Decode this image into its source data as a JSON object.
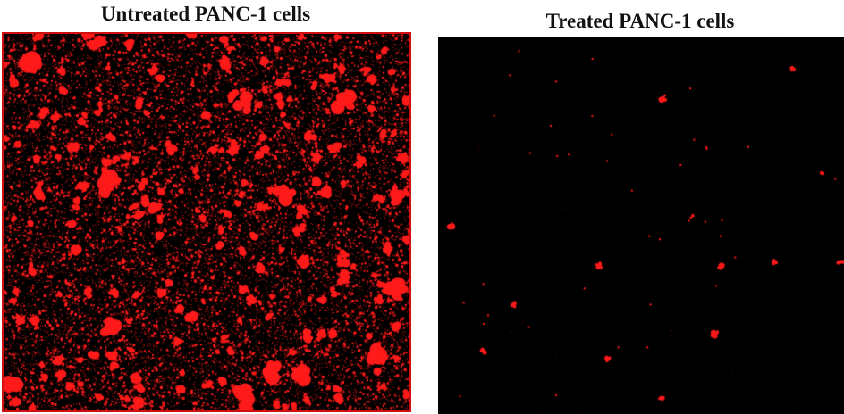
{
  "panels": [
    {
      "title": "Untreated PANC-1 cells",
      "description_color": "#ff0000",
      "signal_density": "high"
    },
    {
      "title": "Treated PANC-1 cells",
      "description_color": "#ff0000",
      "signal_density": "low"
    }
  ],
  "colors": {
    "background": "#ffffff",
    "image_background": "#000000",
    "fluorescence": "#ff1a1a",
    "frame_border": "#d01010"
  }
}
